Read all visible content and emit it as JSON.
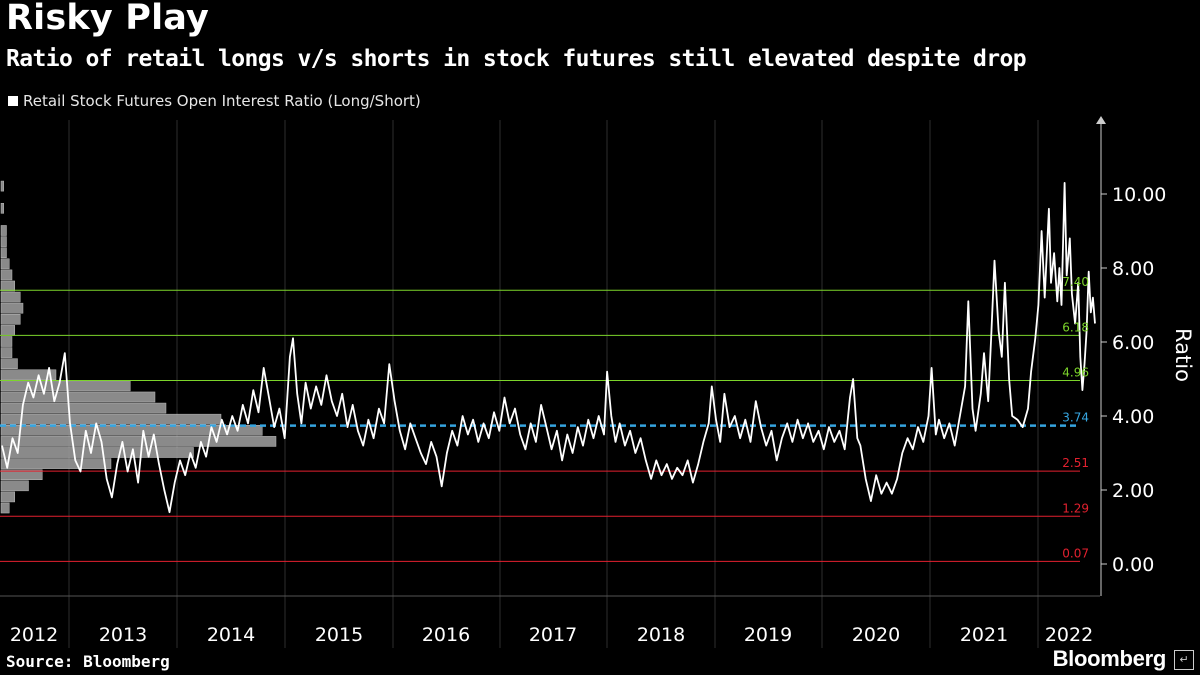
{
  "header": {
    "title": "Risky Play",
    "subtitle": "Ratio of retail longs v/s shorts in stock futures still elevated despite drop",
    "legend_label": "Retail Stock Futures Open Interest Ratio (Long/Short)"
  },
  "footer": {
    "source": "Source: Bloomberg",
    "brand": "Bloomberg",
    "brand_icon": "terminal-icon"
  },
  "colors": {
    "background": "#000000",
    "series": "#ffffff",
    "green_bands": "#7cd42b",
    "blue_mean": "#36a5e0",
    "red_bands": "#e3212f",
    "histogram": "#9a9a9a",
    "grid": "#2e2e2e"
  },
  "chart_data": {
    "type": "line",
    "title": "Risky Play",
    "ylabel": "Ratio",
    "xlabel": "",
    "ylim": [
      -0.8,
      12.0
    ],
    "yticks": [
      0,
      2,
      4,
      6,
      8,
      10
    ],
    "ytick_labels": [
      "0.00",
      "2.00",
      "4.00",
      "6.00",
      "8.00",
      "10.00"
    ],
    "x_categories": [
      "2012",
      "2013",
      "2014",
      "2015",
      "2016",
      "2017",
      "2018",
      "2019",
      "2020",
      "2021",
      "2022"
    ],
    "x_range_years": [
      2012.0,
      2022.45
    ],
    "reference_lines": [
      {
        "value": 7.4,
        "label": "7.40",
        "color": "green"
      },
      {
        "value": 6.18,
        "label": "6.18",
        "color": "green"
      },
      {
        "value": 4.96,
        "label": "4.96",
        "color": "green"
      },
      {
        "value": 3.74,
        "label": "3.74",
        "color": "blue",
        "style": "dashed"
      },
      {
        "value": 2.51,
        "label": "2.51",
        "color": "red"
      },
      {
        "value": 1.29,
        "label": "1.29",
        "color": "red"
      },
      {
        "value": 0.07,
        "label": "0.07",
        "color": "red"
      }
    ],
    "series": [
      {
        "name": "Retail Stock Futures Open Interest Ratio (Long/Short)",
        "points": [
          [
            2012.0,
            3.2
          ],
          [
            2012.05,
            2.6
          ],
          [
            2012.1,
            3.4
          ],
          [
            2012.15,
            3.0
          ],
          [
            2012.2,
            4.3
          ],
          [
            2012.25,
            4.9
          ],
          [
            2012.3,
            4.5
          ],
          [
            2012.35,
            5.1
          ],
          [
            2012.4,
            4.6
          ],
          [
            2012.45,
            5.3
          ],
          [
            2012.5,
            4.4
          ],
          [
            2012.55,
            4.9
          ],
          [
            2012.6,
            5.7
          ],
          [
            2012.65,
            3.8
          ],
          [
            2012.7,
            2.8
          ],
          [
            2012.75,
            2.5
          ],
          [
            2012.8,
            3.6
          ],
          [
            2012.85,
            3.0
          ],
          [
            2012.9,
            3.8
          ],
          [
            2012.95,
            3.3
          ],
          [
            2013.0,
            2.3
          ],
          [
            2013.05,
            1.8
          ],
          [
            2013.1,
            2.7
          ],
          [
            2013.15,
            3.3
          ],
          [
            2013.2,
            2.5
          ],
          [
            2013.25,
            3.1
          ],
          [
            2013.3,
            2.2
          ],
          [
            2013.35,
            3.6
          ],
          [
            2013.4,
            2.9
          ],
          [
            2013.45,
            3.5
          ],
          [
            2013.5,
            2.7
          ],
          [
            2013.55,
            2.0
          ],
          [
            2013.6,
            1.4
          ],
          [
            2013.65,
            2.2
          ],
          [
            2013.7,
            2.8
          ],
          [
            2013.75,
            2.4
          ],
          [
            2013.8,
            3.0
          ],
          [
            2013.85,
            2.6
          ],
          [
            2013.9,
            3.3
          ],
          [
            2013.95,
            2.9
          ],
          [
            2014.0,
            3.7
          ],
          [
            2014.05,
            3.3
          ],
          [
            2014.1,
            3.9
          ],
          [
            2014.15,
            3.5
          ],
          [
            2014.2,
            4.0
          ],
          [
            2014.25,
            3.6
          ],
          [
            2014.3,
            4.3
          ],
          [
            2014.35,
            3.8
          ],
          [
            2014.4,
            4.7
          ],
          [
            2014.45,
            4.1
          ],
          [
            2014.5,
            5.3
          ],
          [
            2014.55,
            4.5
          ],
          [
            2014.6,
            3.7
          ],
          [
            2014.65,
            4.2
          ],
          [
            2014.7,
            3.4
          ],
          [
            2014.75,
            5.6
          ],
          [
            2014.78,
            6.1
          ],
          [
            2014.82,
            4.6
          ],
          [
            2014.86,
            3.8
          ],
          [
            2014.9,
            4.9
          ],
          [
            2014.95,
            4.2
          ],
          [
            2015.0,
            4.8
          ],
          [
            2015.05,
            4.3
          ],
          [
            2015.1,
            5.1
          ],
          [
            2015.15,
            4.4
          ],
          [
            2015.2,
            4.0
          ],
          [
            2015.25,
            4.6
          ],
          [
            2015.3,
            3.7
          ],
          [
            2015.35,
            4.3
          ],
          [
            2015.4,
            3.6
          ],
          [
            2015.45,
            3.2
          ],
          [
            2015.5,
            3.9
          ],
          [
            2015.55,
            3.4
          ],
          [
            2015.6,
            4.2
          ],
          [
            2015.65,
            3.8
          ],
          [
            2015.7,
            5.4
          ],
          [
            2015.75,
            4.4
          ],
          [
            2015.8,
            3.6
          ],
          [
            2015.85,
            3.1
          ],
          [
            2015.9,
            3.8
          ],
          [
            2015.95,
            3.4
          ],
          [
            2016.0,
            3.0
          ],
          [
            2016.05,
            2.7
          ],
          [
            2016.1,
            3.3
          ],
          [
            2016.15,
            2.9
          ],
          [
            2016.2,
            2.1
          ],
          [
            2016.25,
            3.0
          ],
          [
            2016.3,
            3.6
          ],
          [
            2016.35,
            3.2
          ],
          [
            2016.4,
            4.0
          ],
          [
            2016.45,
            3.5
          ],
          [
            2016.5,
            3.9
          ],
          [
            2016.55,
            3.3
          ],
          [
            2016.6,
            3.8
          ],
          [
            2016.65,
            3.4
          ],
          [
            2016.7,
            4.1
          ],
          [
            2016.75,
            3.6
          ],
          [
            2016.8,
            4.5
          ],
          [
            2016.85,
            3.8
          ],
          [
            2016.9,
            4.2
          ],
          [
            2016.95,
            3.5
          ],
          [
            2017.0,
            3.1
          ],
          [
            2017.05,
            3.8
          ],
          [
            2017.1,
            3.3
          ],
          [
            2017.15,
            4.3
          ],
          [
            2017.2,
            3.7
          ],
          [
            2017.25,
            3.1
          ],
          [
            2017.3,
            3.6
          ],
          [
            2017.35,
            2.8
          ],
          [
            2017.4,
            3.5
          ],
          [
            2017.45,
            3.0
          ],
          [
            2017.5,
            3.7
          ],
          [
            2017.55,
            3.2
          ],
          [
            2017.6,
            3.9
          ],
          [
            2017.65,
            3.4
          ],
          [
            2017.7,
            4.0
          ],
          [
            2017.75,
            3.5
          ],
          [
            2017.78,
            5.2
          ],
          [
            2017.82,
            4.0
          ],
          [
            2017.86,
            3.3
          ],
          [
            2017.9,
            3.8
          ],
          [
            2017.95,
            3.2
          ],
          [
            2018.0,
            3.6
          ],
          [
            2018.05,
            3.0
          ],
          [
            2018.1,
            3.4
          ],
          [
            2018.15,
            2.8
          ],
          [
            2018.2,
            2.3
          ],
          [
            2018.25,
            2.8
          ],
          [
            2018.3,
            2.4
          ],
          [
            2018.35,
            2.7
          ],
          [
            2018.4,
            2.3
          ],
          [
            2018.45,
            2.6
          ],
          [
            2018.5,
            2.4
          ],
          [
            2018.55,
            2.8
          ],
          [
            2018.6,
            2.2
          ],
          [
            2018.65,
            2.7
          ],
          [
            2018.7,
            3.3
          ],
          [
            2018.75,
            3.8
          ],
          [
            2018.78,
            4.8
          ],
          [
            2018.82,
            3.9
          ],
          [
            2018.86,
            3.3
          ],
          [
            2018.9,
            4.6
          ],
          [
            2018.95,
            3.7
          ],
          [
            2019.0,
            4.0
          ],
          [
            2019.05,
            3.4
          ],
          [
            2019.1,
            3.9
          ],
          [
            2019.15,
            3.3
          ],
          [
            2019.2,
            4.4
          ],
          [
            2019.25,
            3.7
          ],
          [
            2019.3,
            3.2
          ],
          [
            2019.35,
            3.6
          ],
          [
            2019.4,
            2.8
          ],
          [
            2019.45,
            3.4
          ],
          [
            2019.5,
            3.8
          ],
          [
            2019.55,
            3.3
          ],
          [
            2019.6,
            3.9
          ],
          [
            2019.65,
            3.4
          ],
          [
            2019.7,
            3.8
          ],
          [
            2019.75,
            3.3
          ],
          [
            2019.8,
            3.6
          ],
          [
            2019.85,
            3.1
          ],
          [
            2019.9,
            3.7
          ],
          [
            2019.95,
            3.3
          ],
          [
            2020.0,
            3.6
          ],
          [
            2020.05,
            3.1
          ],
          [
            2020.1,
            4.5
          ],
          [
            2020.13,
            5.0
          ],
          [
            2020.17,
            3.4
          ],
          [
            2020.2,
            3.2
          ],
          [
            2020.25,
            2.3
          ],
          [
            2020.3,
            1.7
          ],
          [
            2020.35,
            2.4
          ],
          [
            2020.4,
            1.9
          ],
          [
            2020.45,
            2.2
          ],
          [
            2020.5,
            1.9
          ],
          [
            2020.55,
            2.3
          ],
          [
            2020.6,
            3.0
          ],
          [
            2020.65,
            3.4
          ],
          [
            2020.7,
            3.1
          ],
          [
            2020.75,
            3.7
          ],
          [
            2020.8,
            3.3
          ],
          [
            2020.85,
            4.0
          ],
          [
            2020.88,
            5.3
          ],
          [
            2020.92,
            3.5
          ],
          [
            2020.95,
            3.9
          ],
          [
            2021.0,
            3.4
          ],
          [
            2021.05,
            3.8
          ],
          [
            2021.1,
            3.2
          ],
          [
            2021.15,
            4.0
          ],
          [
            2021.2,
            4.8
          ],
          [
            2021.23,
            7.1
          ],
          [
            2021.27,
            4.2
          ],
          [
            2021.3,
            3.6
          ],
          [
            2021.35,
            4.6
          ],
          [
            2021.38,
            5.7
          ],
          [
            2021.42,
            4.4
          ],
          [
            2021.45,
            6.2
          ],
          [
            2021.48,
            8.2
          ],
          [
            2021.52,
            6.3
          ],
          [
            2021.55,
            5.6
          ],
          [
            2021.58,
            7.6
          ],
          [
            2021.62,
            5.0
          ],
          [
            2021.65,
            4.0
          ],
          [
            2021.7,
            3.9
          ],
          [
            2021.75,
            3.7
          ],
          [
            2021.8,
            4.2
          ],
          [
            2021.83,
            5.2
          ],
          [
            2021.87,
            6.1
          ],
          [
            2021.9,
            7.0
          ],
          [
            2021.93,
            9.0
          ],
          [
            2021.96,
            7.2
          ],
          [
            2022.0,
            9.6
          ],
          [
            2022.02,
            7.6
          ],
          [
            2022.05,
            8.4
          ],
          [
            2022.08,
            7.1
          ],
          [
            2022.1,
            8.0
          ],
          [
            2022.12,
            7.0
          ],
          [
            2022.15,
            10.3
          ],
          [
            2022.17,
            7.8
          ],
          [
            2022.2,
            8.8
          ],
          [
            2022.22,
            7.3
          ],
          [
            2022.25,
            6.5
          ],
          [
            2022.28,
            7.6
          ],
          [
            2022.3,
            5.6
          ],
          [
            2022.32,
            4.7
          ],
          [
            2022.34,
            5.4
          ],
          [
            2022.36,
            6.3
          ],
          [
            2022.38,
            7.9
          ],
          [
            2022.4,
            6.8
          ],
          [
            2022.42,
            7.2
          ],
          [
            2022.44,
            6.5
          ]
        ]
      }
    ],
    "distribution_histogram": {
      "note": "horizontal frequency histogram of the ratio along the left edge (relative frequencies)",
      "bins": [
        {
          "value": 1.5,
          "freq": 0.03
        },
        {
          "value": 1.8,
          "freq": 0.05
        },
        {
          "value": 2.1,
          "freq": 0.1
        },
        {
          "value": 2.4,
          "freq": 0.15
        },
        {
          "value": 2.7,
          "freq": 0.4
        },
        {
          "value": 3.0,
          "freq": 0.7
        },
        {
          "value": 3.3,
          "freq": 1.0
        },
        {
          "value": 3.6,
          "freq": 0.95
        },
        {
          "value": 3.9,
          "freq": 0.8
        },
        {
          "value": 4.2,
          "freq": 0.6
        },
        {
          "value": 4.5,
          "freq": 0.56
        },
        {
          "value": 4.8,
          "freq": 0.47
        },
        {
          "value": 5.1,
          "freq": 0.2
        },
        {
          "value": 5.4,
          "freq": 0.06
        },
        {
          "value": 5.7,
          "freq": 0.04
        },
        {
          "value": 6.0,
          "freq": 0.04
        },
        {
          "value": 6.3,
          "freq": 0.05
        },
        {
          "value": 6.6,
          "freq": 0.07
        },
        {
          "value": 6.9,
          "freq": 0.08
        },
        {
          "value": 7.2,
          "freq": 0.07
        },
        {
          "value": 7.5,
          "freq": 0.05
        },
        {
          "value": 7.8,
          "freq": 0.04
        },
        {
          "value": 8.1,
          "freq": 0.03
        },
        {
          "value": 8.4,
          "freq": 0.02
        },
        {
          "value": 8.7,
          "freq": 0.02
        },
        {
          "value": 9.0,
          "freq": 0.02
        },
        {
          "value": 9.6,
          "freq": 0.01
        },
        {
          "value": 10.2,
          "freq": 0.01
        }
      ]
    }
  }
}
